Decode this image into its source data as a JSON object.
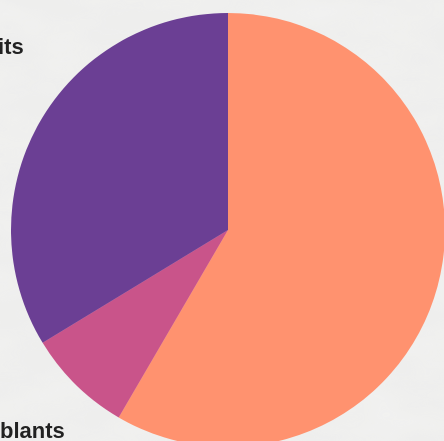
{
  "chart_data": {
    "type": "pie",
    "start_angle_deg": 0,
    "direction": "clockwise",
    "slices": [
      {
        "label": "",
        "value": 58.4,
        "color": "#ff926f"
      },
      {
        "label": "",
        "value": 7.9,
        "color": "#c9548a"
      },
      {
        "label": "",
        "value": 33.7,
        "color": "#6b3f94"
      }
    ],
    "visible_label_fragments": [
      "its",
      "blants"
    ]
  }
}
